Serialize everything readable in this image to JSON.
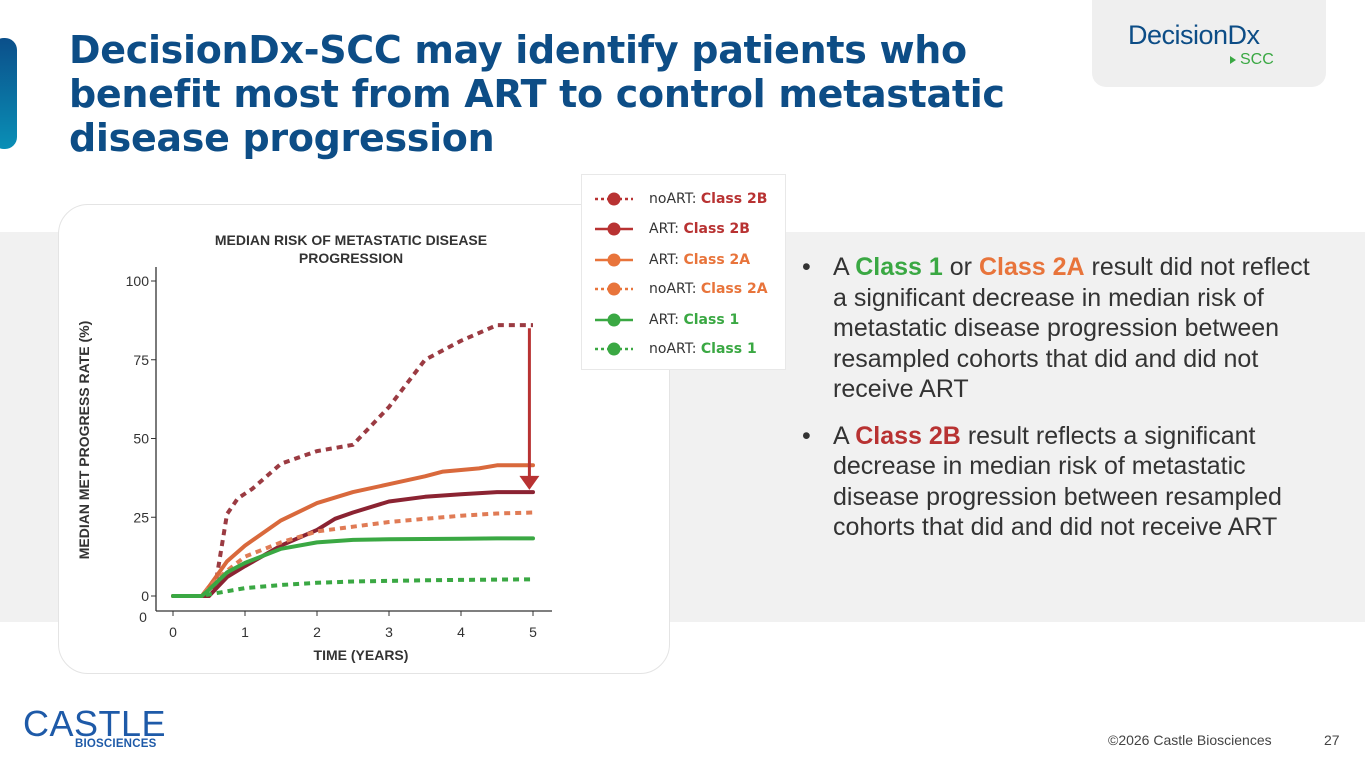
{
  "slide": {
    "title": "DecisionDx-SCC may identify patients who benefit most from ART to control metastatic disease progression",
    "page_number": "27",
    "copyright": "©2026 Castle Biosciences"
  },
  "brand_logo": {
    "main": "DecisionDx",
    "sub": "SCC"
  },
  "company_logo": {
    "main": "CASTLE",
    "sub": "BIOSCIENCES"
  },
  "colors": {
    "title_blue": "#0d4d86",
    "class1_green": "#3aa843",
    "class2a_orange": "#e8743b",
    "class2b_red": "#b83232",
    "band_gray": "#f1f1f1"
  },
  "bullets": [
    {
      "t1": "A ",
      "h1": "Class 1",
      "t2": " or ",
      "h2": "Class 2A",
      "t3": " result did not reflect a significant decrease in median risk of metastatic disease progression between resampled cohorts that did and did not receive ART"
    },
    {
      "t1": "A ",
      "h1": "Class 2B",
      "t2": " result reflects a significant decrease in median risk of metastatic disease progression between resampled cohorts that did and did not receive ART"
    }
  ],
  "legend": [
    {
      "prefix": "noART: ",
      "cls": "Class 2B",
      "color": "#b83232",
      "dashed": true
    },
    {
      "prefix": "ART: ",
      "cls": "Class 2B",
      "color": "#b83232",
      "dashed": false
    },
    {
      "prefix": "ART: ",
      "cls": "Class 2A",
      "color": "#e8743b",
      "dashed": false
    },
    {
      "prefix": "noART: ",
      "cls": "Class 2A",
      "color": "#e8743b",
      "dashed": true
    },
    {
      "prefix": "ART: ",
      "cls": "Class 1",
      "color": "#3aa843",
      "dashed": false
    },
    {
      "prefix": "noART: ",
      "cls": "Class 1",
      "color": "#3aa843",
      "dashed": true
    }
  ],
  "chart_data": {
    "type": "line",
    "title": "MEDIAN RISK OF METASTATIC DISEASE PROGRESSION",
    "xlabel": "TIME (YEARS)",
    "ylabel": "MEDIAN MET PROGRESS RATE (%)",
    "xlim": [
      0,
      5
    ],
    "ylim": [
      0,
      100
    ],
    "xticks": [
      0,
      1,
      2,
      3,
      4,
      5
    ],
    "yticks": [
      0,
      25,
      50,
      75,
      100
    ],
    "extra_origin_label": "0",
    "series": [
      {
        "name": "noART: Class 2B",
        "color": "#9b3b42",
        "dashed": true,
        "x": [
          0,
          0.5,
          0.6,
          0.75,
          0.9,
          1.1,
          1.5,
          2.0,
          2.5,
          3.0,
          3.5,
          4.0,
          4.5,
          5.0
        ],
        "y": [
          0,
          0,
          5,
          26,
          31,
          34,
          42,
          46,
          48,
          60,
          75,
          81,
          86,
          86
        ]
      },
      {
        "name": "ART: Class 2B",
        "color": "#8b2332",
        "dashed": false,
        "x": [
          0,
          0.5,
          0.75,
          1.0,
          1.5,
          2.0,
          2.25,
          2.5,
          3.0,
          3.5,
          4.0,
          4.5,
          5.0
        ],
        "y": [
          0,
          0,
          6,
          9.5,
          16,
          21,
          24.5,
          26.5,
          30,
          31.5,
          32.3,
          33,
          33
        ]
      },
      {
        "name": "ART: Class 2A",
        "color": "#d9693c",
        "dashed": false,
        "x": [
          0,
          0.4,
          0.5,
          0.75,
          1.0,
          1.5,
          2.0,
          2.5,
          3.0,
          3.5,
          3.75,
          4.0,
          4.25,
          4.5,
          5.0
        ],
        "y": [
          0,
          0,
          3,
          11,
          16,
          24,
          29.5,
          33,
          35.5,
          38,
          39.5,
          40,
          40.5,
          41.5,
          41.5
        ]
      },
      {
        "name": "noART: Class 2A",
        "color": "#e07b55",
        "dashed": true,
        "x": [
          0,
          0.4,
          0.5,
          0.75,
          1.0,
          1.5,
          2.0,
          2.5,
          3.0,
          3.5,
          4.0,
          4.5,
          5.0
        ],
        "y": [
          0,
          0,
          3,
          8,
          12.5,
          17,
          20.5,
          22,
          23.5,
          24.5,
          25.5,
          26.2,
          26.5
        ]
      },
      {
        "name": "ART: Class 1",
        "color": "#3aa843",
        "dashed": false,
        "x": [
          0,
          0.4,
          0.5,
          0.75,
          1.0,
          1.5,
          2.0,
          2.5,
          3.0,
          3.5,
          4.0,
          4.5,
          5.0
        ],
        "y": [
          0,
          0,
          2,
          7.5,
          10.5,
          15,
          17,
          17.8,
          18,
          18.1,
          18.2,
          18.3,
          18.3
        ]
      },
      {
        "name": "noART: Class 1",
        "color": "#3aa843",
        "dashed": true,
        "x": [
          0,
          0.4,
          0.5,
          0.75,
          1.0,
          1.5,
          2.0,
          2.5,
          3.0,
          3.5,
          4.0,
          4.5,
          5.0
        ],
        "y": [
          0,
          0,
          0.5,
          1.5,
          2.5,
          3.5,
          4.2,
          4.6,
          4.8,
          5.0,
          5.1,
          5.2,
          5.3
        ]
      }
    ],
    "annotation": {
      "type": "arrow",
      "x": 4.95,
      "y_from": 85,
      "y_to": 34,
      "color": "#b83232"
    }
  }
}
